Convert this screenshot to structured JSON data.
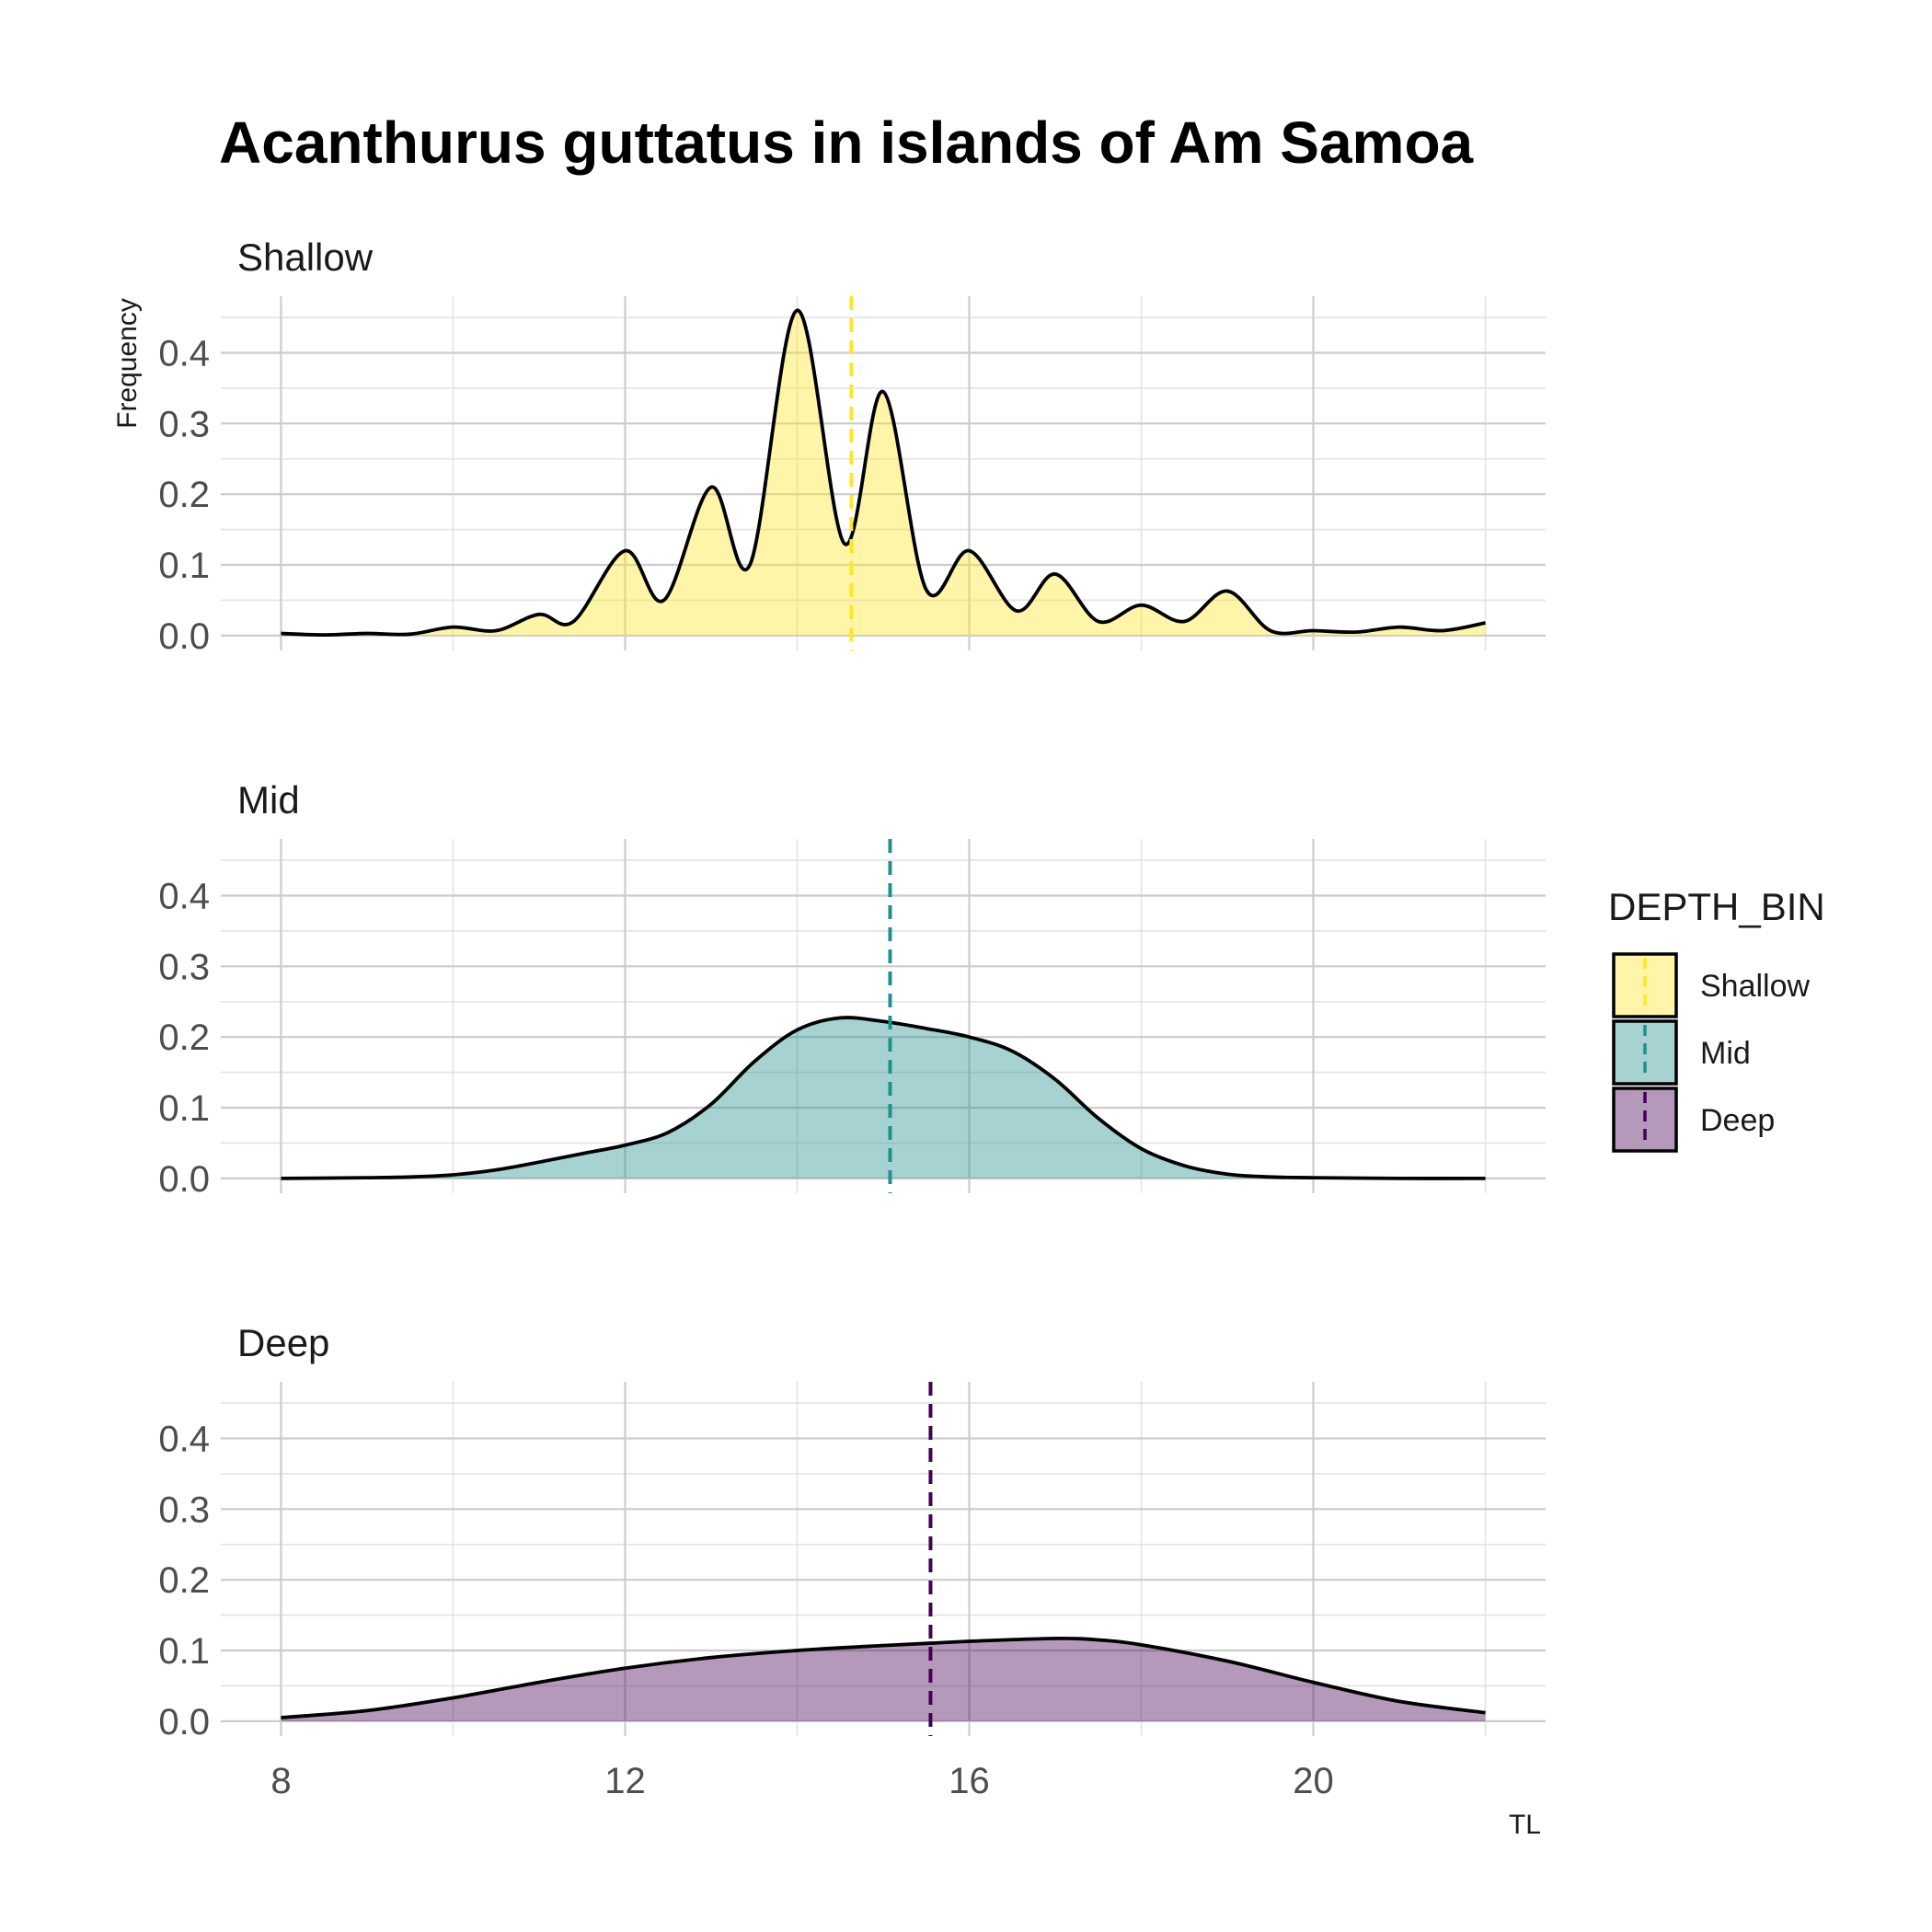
{
  "chart_data": {
    "type": "area",
    "title": "Acanthurus guttatus in islands of Am Samoa",
    "xlabel": "TL",
    "ylabel": "Frequency",
    "xlim": [
      7.3,
      22.7
    ],
    "ylim": [
      -0.021,
      0.48
    ],
    "x_ticks": [
      8,
      12,
      16,
      20
    ],
    "y_ticks": [
      0.0,
      0.1,
      0.2,
      0.3,
      0.4
    ],
    "x_tick_labels": [
      "8",
      "12",
      "16",
      "20"
    ],
    "y_tick_labels": [
      "0.0",
      "0.1",
      "0.2",
      "0.3",
      "0.4"
    ],
    "grid": true,
    "legend": {
      "title": "DEPTH_BIN",
      "position": "right",
      "entries": [
        "Shallow",
        "Mid",
        "Deep"
      ]
    },
    "series": [
      {
        "name": "Shallow",
        "fill": "#FDE725",
        "line": "#FDE725",
        "mean": 14.63,
        "x": [
          8.0,
          8.5,
          9.0,
          9.5,
          10.0,
          10.5,
          11.0,
          11.4,
          12.0,
          12.45,
          13.0,
          13.45,
          14.0,
          14.55,
          15.0,
          15.5,
          16.0,
          16.55,
          17.0,
          17.5,
          18.0,
          18.5,
          19.0,
          19.5,
          20.0,
          20.5,
          21.0,
          21.5,
          22.0
        ],
        "y": [
          0.003,
          0.001,
          0.003,
          0.002,
          0.012,
          0.007,
          0.03,
          0.02,
          0.12,
          0.05,
          0.21,
          0.1,
          0.46,
          0.13,
          0.345,
          0.065,
          0.12,
          0.035,
          0.087,
          0.02,
          0.043,
          0.02,
          0.063,
          0.007,
          0.007,
          0.005,
          0.012,
          0.007,
          0.018
        ]
      },
      {
        "name": "Mid",
        "fill": "#21908C",
        "line": "#21908C",
        "mean": 15.08,
        "x": [
          8.0,
          9.0,
          9.5,
          10.0,
          10.5,
          11.0,
          11.5,
          12.0,
          12.5,
          13.0,
          13.5,
          14.0,
          14.5,
          15.0,
          15.5,
          16.0,
          16.5,
          17.0,
          17.5,
          18.0,
          18.5,
          19.0,
          19.5,
          20.0,
          21.0,
          22.0
        ],
        "y": [
          0.0,
          0.001,
          0.002,
          0.005,
          0.012,
          0.023,
          0.035,
          0.047,
          0.065,
          0.105,
          0.165,
          0.21,
          0.227,
          0.222,
          0.212,
          0.2,
          0.18,
          0.14,
          0.085,
          0.042,
          0.018,
          0.006,
          0.002,
          0.001,
          0.0,
          0.0
        ]
      },
      {
        "name": "Deep",
        "fill": "#440154",
        "line": "#440154",
        "mean": 15.55,
        "x": [
          8.0,
          9.0,
          10.0,
          11.0,
          12.0,
          13.0,
          14.0,
          15.0,
          16.0,
          17.0,
          17.5,
          18.0,
          19.0,
          20.0,
          21.0,
          22.0
        ],
        "y": [
          0.005,
          0.015,
          0.033,
          0.055,
          0.075,
          0.09,
          0.1,
          0.107,
          0.113,
          0.117,
          0.115,
          0.108,
          0.085,
          0.055,
          0.028,
          0.012
        ]
      }
    ]
  }
}
